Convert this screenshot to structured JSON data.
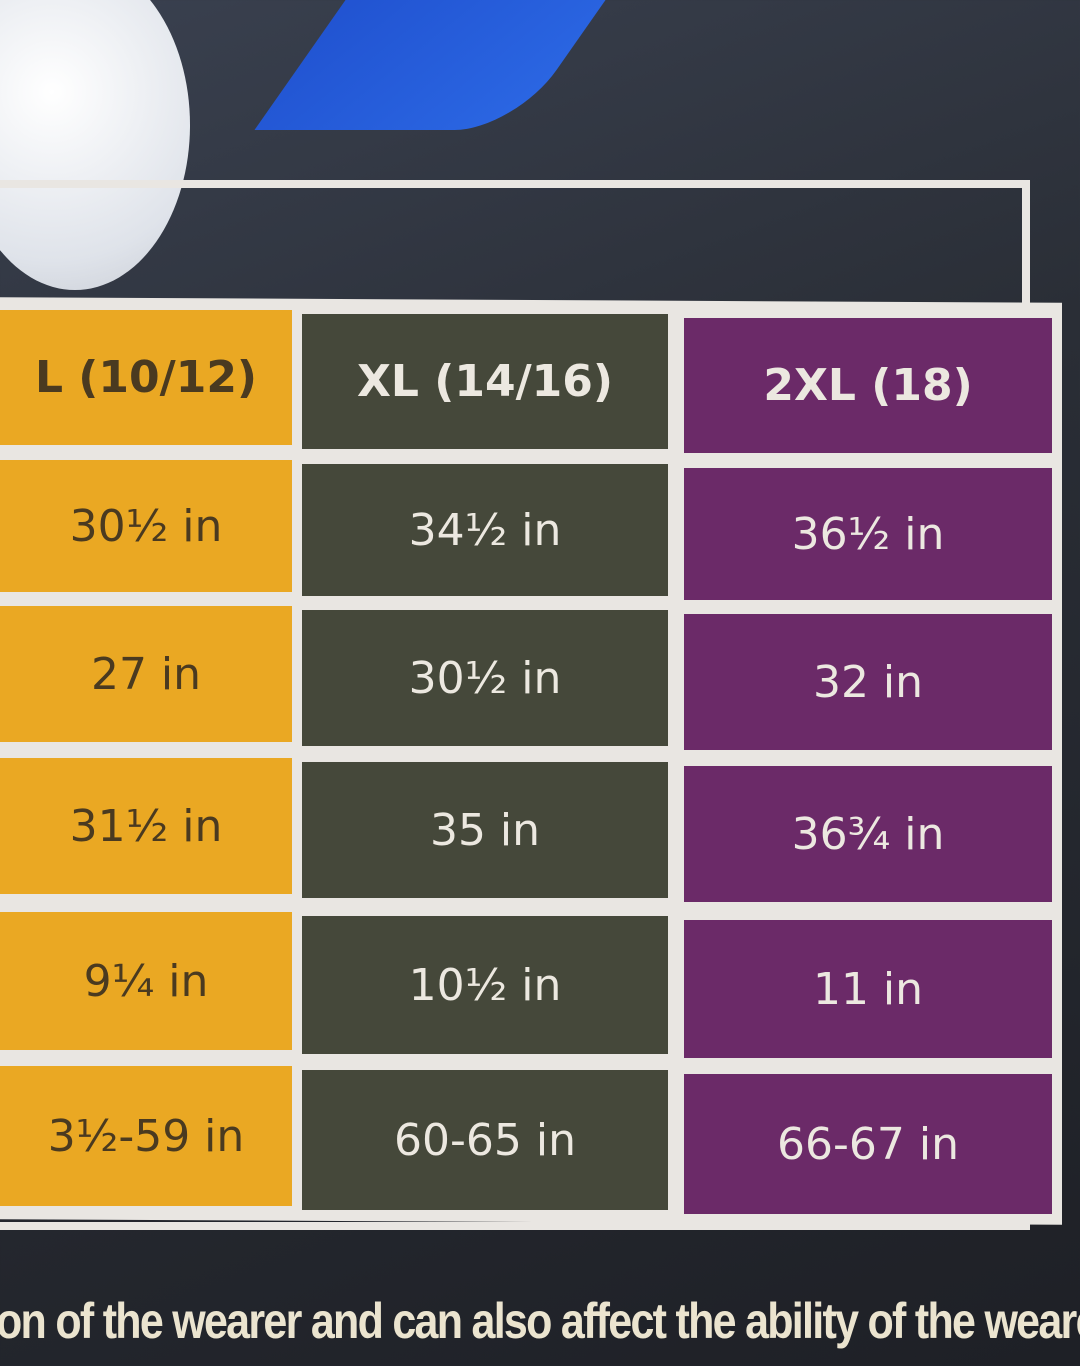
{
  "table": {
    "headers": [
      "L (10/12)",
      "XL (14/16)",
      "2XL (18)"
    ],
    "rows": [
      [
        "30½ in",
        "34½ in",
        "36½ in"
      ],
      [
        "27 in",
        "30½ in",
        "32 in"
      ],
      [
        "31½ in",
        "35 in",
        "36¾ in"
      ],
      [
        "9¼ in",
        "10½ in",
        "11 in"
      ],
      [
        "3½-59 in",
        "60-65 in",
        "66-67 in"
      ]
    ]
  },
  "caption": "on of the wearer and can also affect the ability of the weare",
  "colors": {
    "L": "#eaa823",
    "XL": "#45483a",
    "2XL": "#6b2a68"
  }
}
